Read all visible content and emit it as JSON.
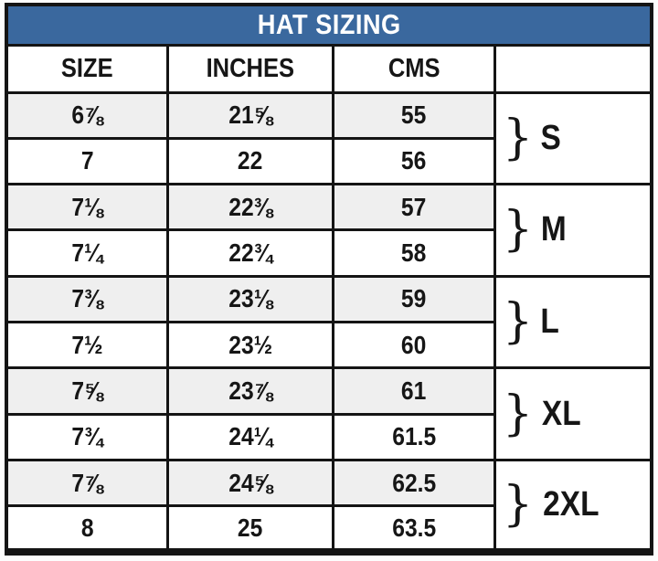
{
  "chart_data": {
    "type": "table",
    "title": "HAT SIZING",
    "columns": [
      "SIZE",
      "INCHES",
      "CMS",
      ""
    ],
    "rows": [
      {
        "size": "6⅞",
        "inches": "21⅝",
        "cms": "55"
      },
      {
        "size": "7",
        "inches": "22",
        "cms": "56"
      },
      {
        "size": "7⅛",
        "inches": "22⅜",
        "cms": "57"
      },
      {
        "size": "7¼",
        "inches": "22¾",
        "cms": "58"
      },
      {
        "size": "7⅜",
        "inches": "23⅛",
        "cms": "59"
      },
      {
        "size": "7½",
        "inches": "23½",
        "cms": "60"
      },
      {
        "size": "7⅝",
        "inches": "23⅞",
        "cms": "61"
      },
      {
        "size": "7¾",
        "inches": "24¼",
        "cms": "61.5"
      },
      {
        "size": "7⅞",
        "inches": "24⅝",
        "cms": "62.5"
      },
      {
        "size": "8",
        "inches": "25",
        "cms": "63.5"
      }
    ],
    "groups": [
      {
        "brace": "}",
        "label": "S"
      },
      {
        "brace": "}",
        "label": "M"
      },
      {
        "brace": "}",
        "label": "L"
      },
      {
        "brace": "}",
        "label": "XL"
      },
      {
        "brace": "}",
        "label": "2XL"
      }
    ]
  },
  "colors": {
    "header_bg": "#3A689E",
    "header_text": "#FFFFFF",
    "row_alt_bg": "#EFEFEF",
    "row_bg": "#FFFFFF",
    "border": "#141414",
    "text": "#161616"
  }
}
